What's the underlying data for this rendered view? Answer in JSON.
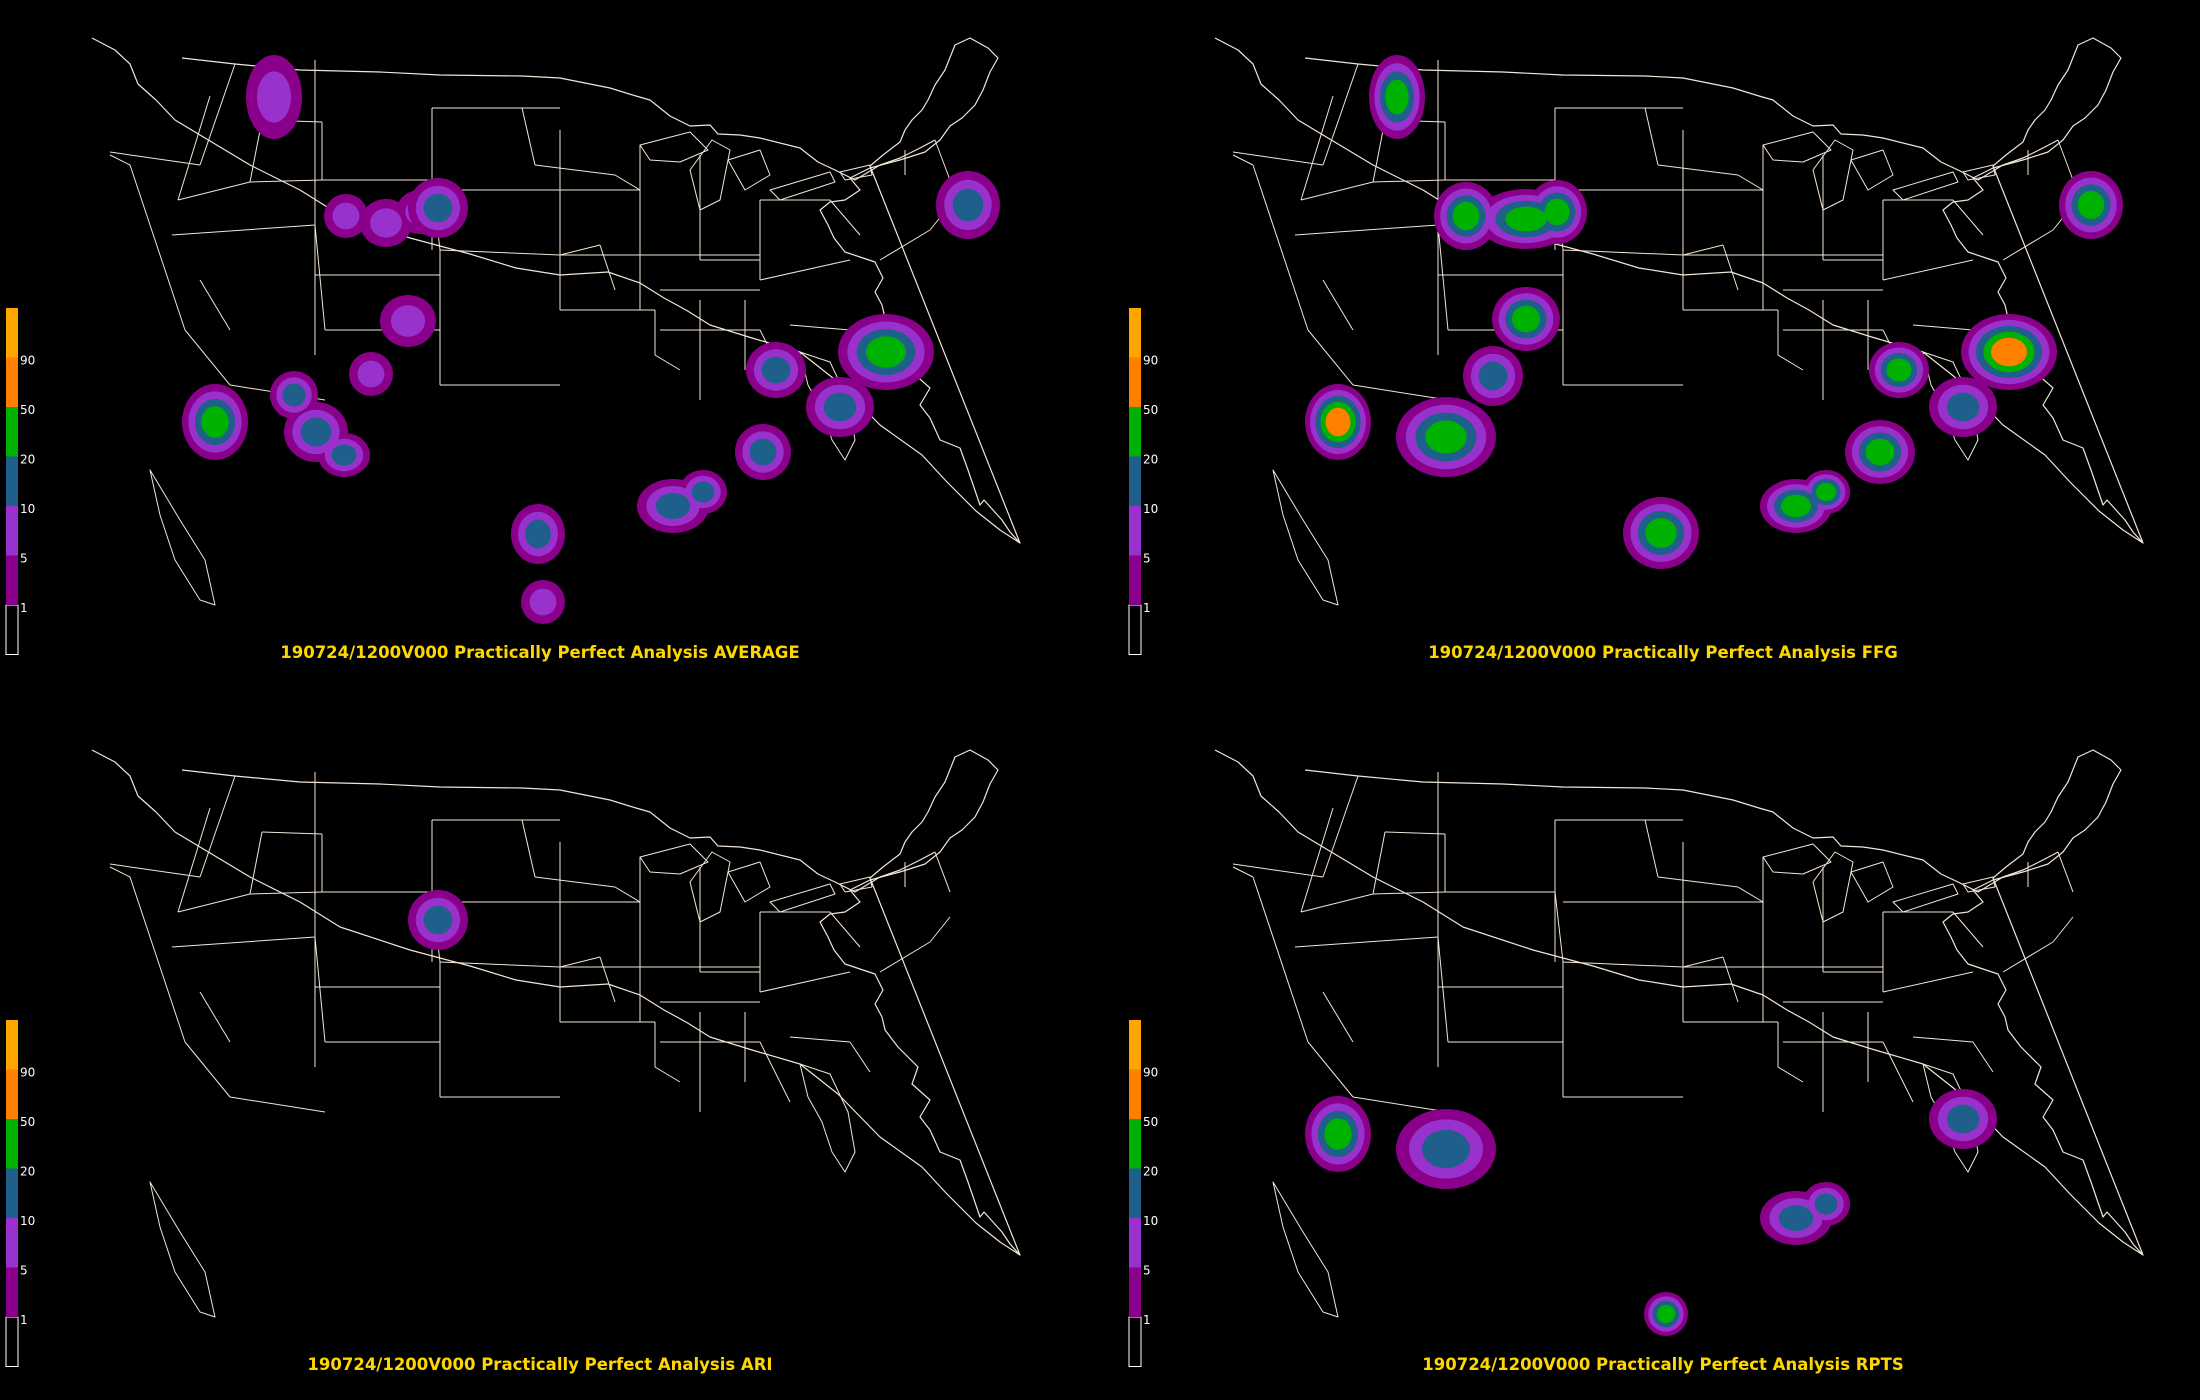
{
  "legend": {
    "labels": [
      "1",
      "5",
      "10",
      "20",
      "50",
      "90"
    ],
    "colors": {
      "level_0": "#000000",
      "level_1": "#8b008b",
      "level_5": "#9932cc",
      "level_10": "#1f5f8b",
      "level_20": "#00b200",
      "level_50": "#ff7f00",
      "level_90": "#ffa500"
    }
  },
  "panels": [
    {
      "title": "190724/1200V000 Practically Perfect Analysis AVERAGE",
      "spots": [
        {
          "region": "northern-idaho",
          "peak": 5
        },
        {
          "region": "southern-montana",
          "peak": 5
        },
        {
          "region": "western-south-dakota",
          "peak": 10
        },
        {
          "region": "central-colorado",
          "peak": 5
        },
        {
          "region": "northern-new-mexico",
          "peak": 5
        },
        {
          "region": "central-california",
          "peak": 20
        },
        {
          "region": "southern-arizona",
          "peak": 10
        },
        {
          "region": "central-texas",
          "peak": 10
        },
        {
          "region": "south-texas",
          "peak": 5
        },
        {
          "region": "southern-louisiana",
          "peak": 10
        },
        {
          "region": "alabama",
          "peak": 10
        },
        {
          "region": "kentucky",
          "peak": 10
        },
        {
          "region": "virginia-north-carolina",
          "peak": 20
        },
        {
          "region": "south-carolina",
          "peak": 10
        },
        {
          "region": "new-england",
          "peak": 10
        }
      ]
    },
    {
      "title": "190724/1200V000 Practically Perfect Analysis FFG",
      "spots": [
        {
          "region": "northern-idaho",
          "peak": 20
        },
        {
          "region": "montana-south-dakota",
          "peak": 20
        },
        {
          "region": "northern-colorado",
          "peak": 20
        },
        {
          "region": "utah-colorado",
          "peak": 10
        },
        {
          "region": "central-california",
          "peak": 50
        },
        {
          "region": "arizona",
          "peak": 20
        },
        {
          "region": "southeast-texas",
          "peak": 20
        },
        {
          "region": "southern-louisiana",
          "peak": 20
        },
        {
          "region": "georgia",
          "peak": 20
        },
        {
          "region": "kentucky",
          "peak": 20
        },
        {
          "region": "virginia-north-carolina",
          "peak": 50
        },
        {
          "region": "south-carolina",
          "peak": 10
        },
        {
          "region": "new-england",
          "peak": 20
        }
      ]
    },
    {
      "title": "190724/1200V000 Practically Perfect Analysis ARI",
      "spots": [
        {
          "region": "western-south-dakota",
          "peak": 10
        }
      ]
    },
    {
      "title": "190724/1200V000 Practically Perfect Analysis RPTS",
      "spots": [
        {
          "region": "central-california",
          "peak": 20
        },
        {
          "region": "arizona",
          "peak": 10
        },
        {
          "region": "south-carolina",
          "peak": 10
        },
        {
          "region": "southern-louisiana",
          "peak": 10
        },
        {
          "region": "south-texas",
          "peak": 20
        }
      ]
    }
  ]
}
